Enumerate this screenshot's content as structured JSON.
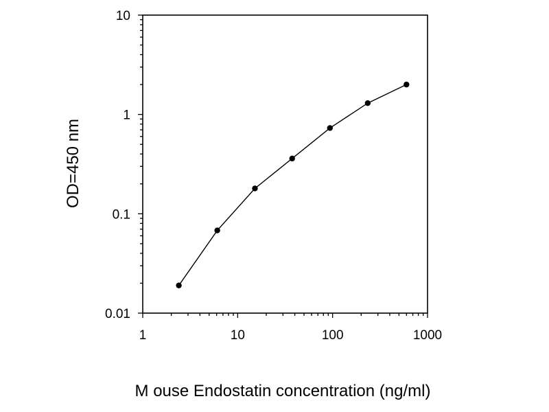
{
  "chart_data": {
    "type": "line",
    "xlabel": "M ouse Endostatin concentration (ng/ml)",
    "ylabel": "OD=450 nm",
    "x_scale": "log",
    "y_scale": "log",
    "xlim": [
      1,
      1000
    ],
    "ylim": [
      0.01,
      10
    ],
    "x_ticks": [
      "1",
      "10",
      "100",
      "1000"
    ],
    "y_ticks": [
      "0.01",
      "0.1",
      "1",
      "10"
    ],
    "grid": false,
    "legend": "none",
    "colors": {
      "line": "#000000",
      "marker": "#000000",
      "frame": "#000000"
    },
    "series": [
      {
        "x": [
          2.4,
          6.1,
          15.2,
          37.5,
          93.8,
          234.4,
          600
        ],
        "y": [
          0.019,
          0.068,
          0.18,
          0.36,
          0.73,
          1.3,
          2.0
        ]
      }
    ]
  }
}
